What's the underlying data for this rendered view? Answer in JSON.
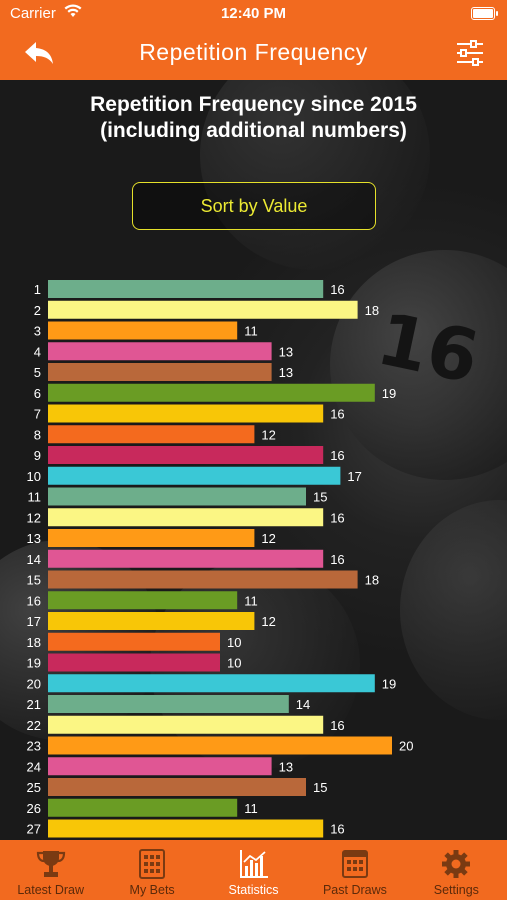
{
  "status_bar": {
    "carrier": "Carrier",
    "time": "12:40 PM"
  },
  "nav": {
    "title": "Repetition Frequency",
    "back_icon": "back-arrow-icon",
    "filter_icon": "sliders-icon"
  },
  "heading": {
    "line1": "Repetition Frequency since 2015",
    "line2": "(including additional numbers)"
  },
  "sort_button": {
    "label": "Sort by Value"
  },
  "background_ball_numbers": [
    "16"
  ],
  "chart_data": {
    "type": "bar",
    "orientation": "horizontal",
    "title": "Repetition Frequency since 2015 (including additional numbers)",
    "categories": [
      "1",
      "2",
      "3",
      "4",
      "5",
      "6",
      "7",
      "8",
      "9",
      "10",
      "11",
      "12",
      "13",
      "14",
      "15",
      "16",
      "17",
      "18",
      "19",
      "20",
      "21",
      "22",
      "23",
      "24",
      "25",
      "26",
      "27"
    ],
    "values": [
      16,
      18,
      11,
      13,
      13,
      19,
      16,
      12,
      16,
      17,
      15,
      16,
      12,
      16,
      18,
      11,
      12,
      10,
      10,
      19,
      14,
      16,
      20,
      13,
      15,
      11,
      16
    ],
    "colors": [
      "#6dae8b",
      "#fbf684",
      "#ff9a16",
      "#e05694",
      "#b9683a",
      "#6a9c24",
      "#f8c607",
      "#f46a1e",
      "#c8295c",
      "#3ac8d6"
    ],
    "xlim": [
      0,
      20
    ],
    "grid": false
  },
  "tabs": [
    {
      "label": "Latest Draw",
      "icon": "trophy-icon",
      "active": false
    },
    {
      "label": "My Bets",
      "icon": "bet-slip-icon",
      "active": false
    },
    {
      "label": "Statistics",
      "icon": "statistics-chart-icon",
      "active": true
    },
    {
      "label": "Past Draws",
      "icon": "calendar-grid-icon",
      "active": false
    },
    {
      "label": "Settings",
      "icon": "gear-icon",
      "active": false
    }
  ]
}
